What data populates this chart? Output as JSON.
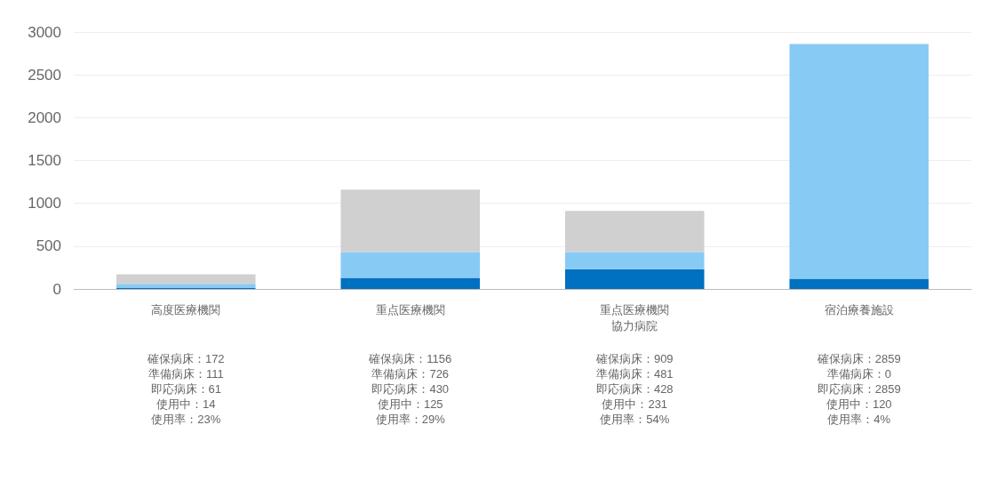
{
  "chart_data": {
    "type": "bar",
    "stacked": true,
    "categories": [
      "高度医療機関",
      "重点医療機関",
      "重点医療機関協力病院",
      "宿泊療養施設"
    ],
    "series": [
      {
        "color": "#0070c0",
        "values": [
          10,
          130,
          230,
          120
        ]
      },
      {
        "color": "#87cbf5",
        "values": [
          50,
          300,
          200,
          2740
        ]
      },
      {
        "color": "#d0d0d0",
        "values": [
          110,
          730,
          480,
          0
        ]
      }
    ],
    "ylim": [
      0,
      3000
    ],
    "yticks": [
      0,
      500,
      1000,
      1500,
      2000,
      2500,
      3000
    ],
    "grid": "y",
    "annotations": [
      "確保病床：172\n準備病床：111\n即応病床：61\n使用中：14\n使用率：23%",
      "確保病床：1156\n準備病床：726\n即応病床：430\n使用中：125\n使用率：29%",
      "確保病床：909\n準備病床：481\n即応病床：428\n使用中：231\n使用率：54%",
      "確保病床：2859\n準備病床：0\n即応病床：2859\n使用中：120\n使用率：4%"
    ]
  }
}
